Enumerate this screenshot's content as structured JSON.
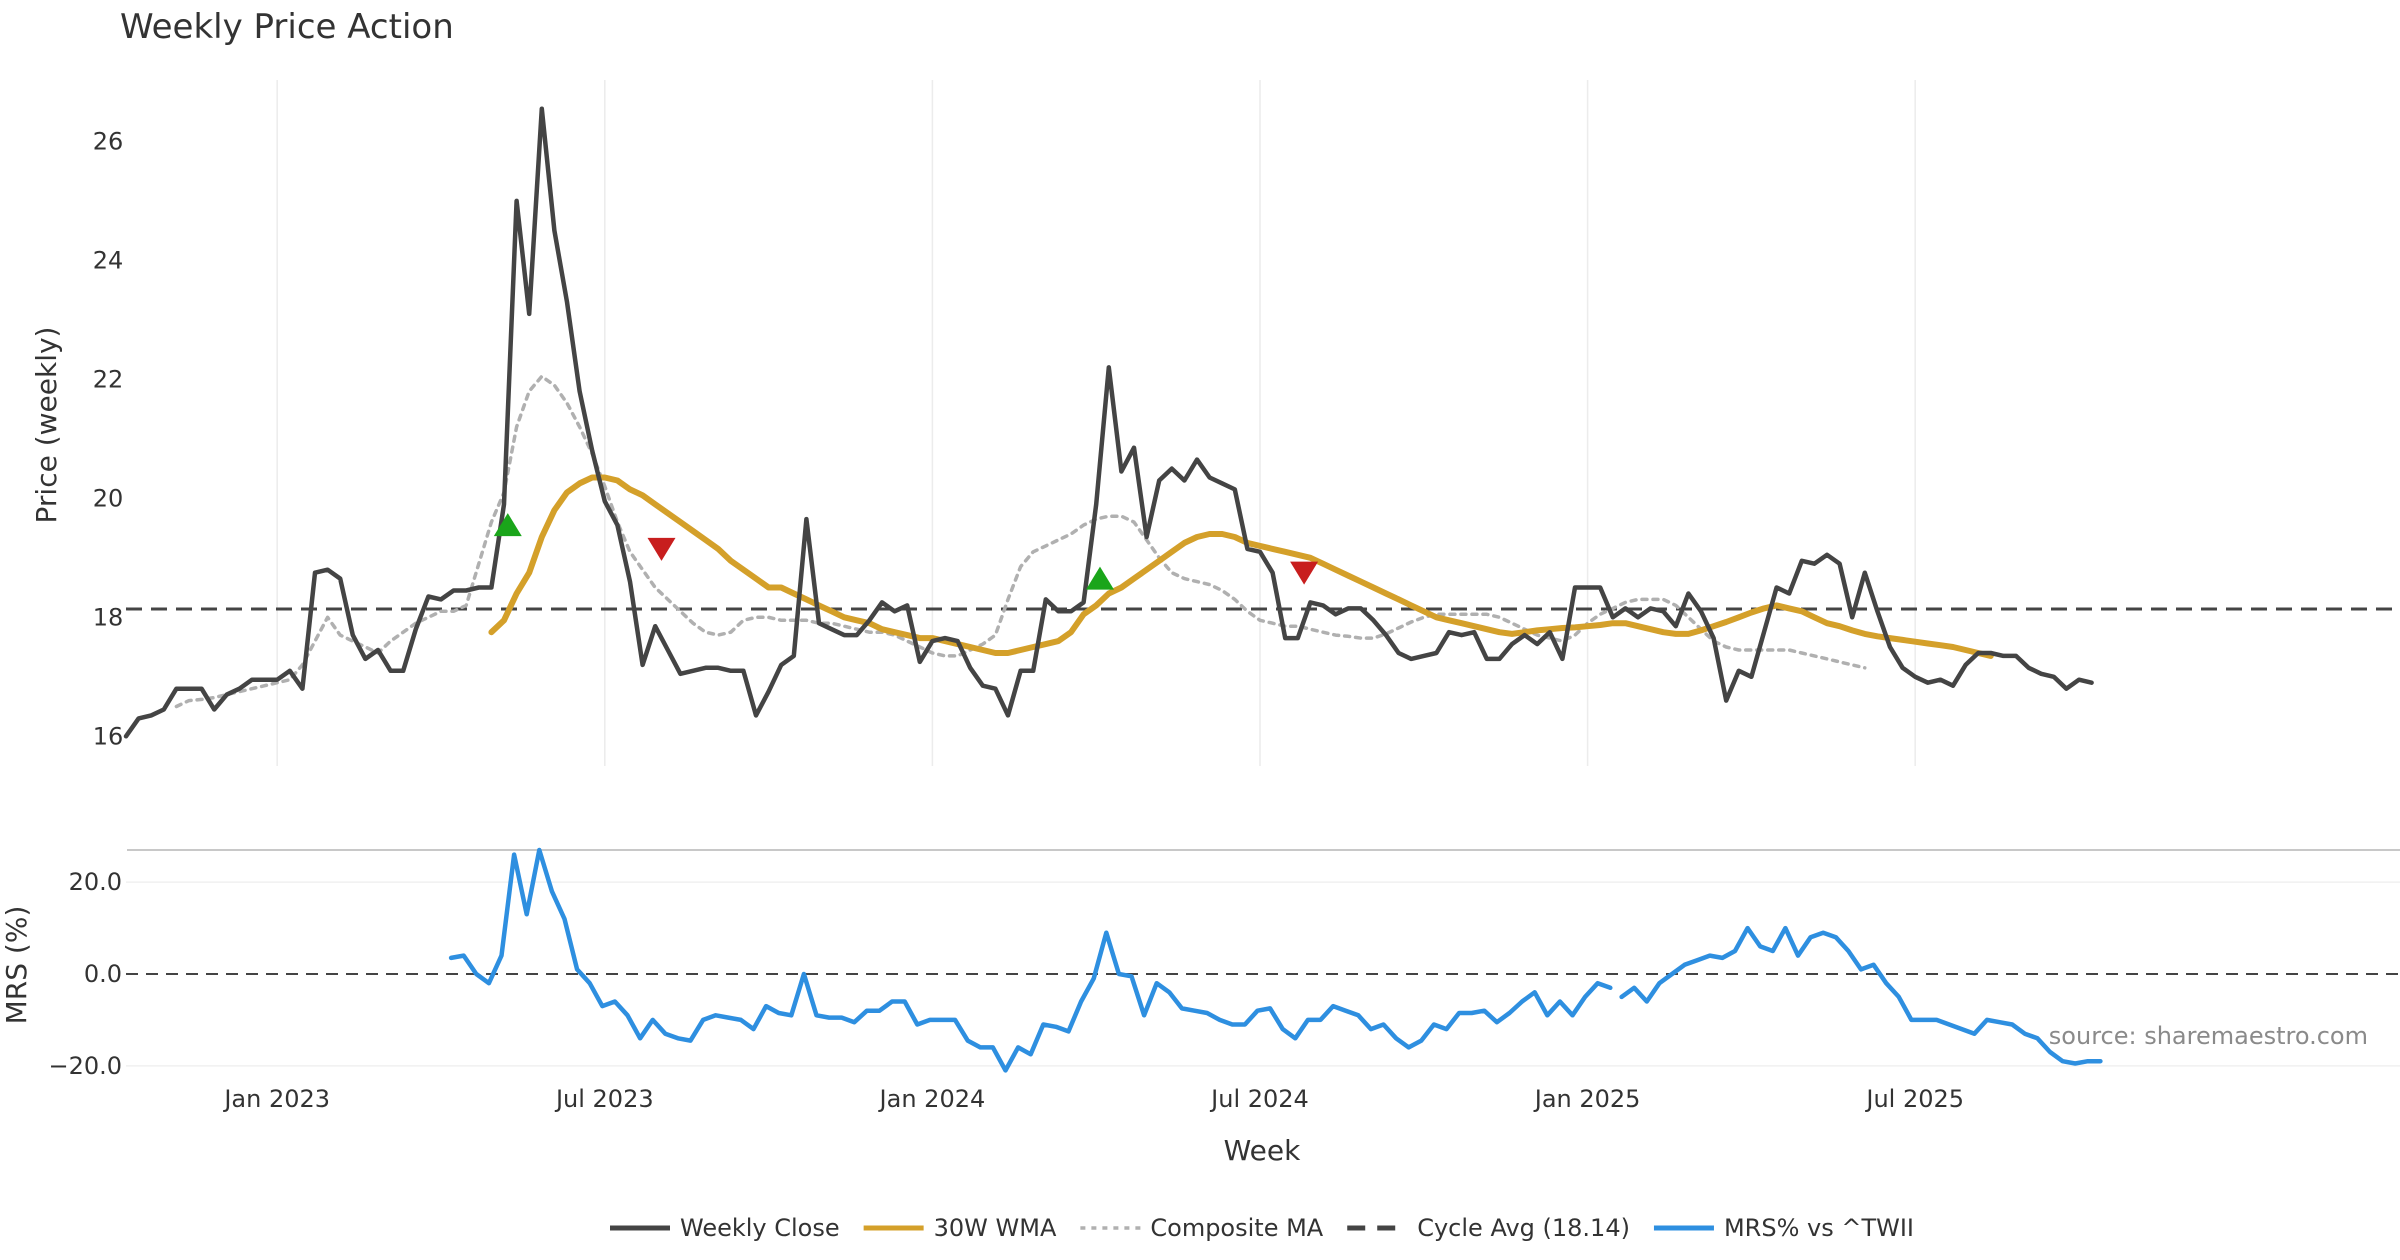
{
  "chart_data": {
    "type": "line",
    "title": "Weekly Price Action",
    "source": "source: sharemaestro.com",
    "xlabel": "Week",
    "x_ticks": [
      "Jan 2023",
      "Jul 2023",
      "Jan 2024",
      "Jul 2024",
      "Jan 2025",
      "Jul 2025"
    ],
    "x_tick_weeks": [
      12,
      38,
      64,
      90,
      116,
      142
    ],
    "price_panel": {
      "ylabel": "Price (weekly)",
      "ylim": [
        15.5,
        27.2
      ],
      "yticks": [
        16,
        18,
        20,
        22,
        24,
        26
      ],
      "series": [
        {
          "name": "Weekly Close",
          "color": "#444444",
          "start_week": 0,
          "values": [
            16.0,
            16.3,
            16.35,
            16.45,
            16.8,
            16.8,
            16.8,
            16.45,
            16.7,
            16.8,
            16.95,
            16.95,
            16.95,
            17.1,
            16.8,
            18.75,
            18.8,
            18.65,
            17.7,
            17.3,
            17.45,
            17.1,
            17.1,
            17.8,
            18.35,
            18.3,
            18.45,
            18.45,
            18.5,
            18.5,
            19.9,
            25.0,
            23.1,
            26.55,
            24.5,
            23.3,
            21.8,
            20.8,
            19.95,
            19.55,
            18.6,
            17.2,
            17.85,
            17.45,
            17.05,
            17.1,
            17.15,
            17.15,
            17.1,
            17.1,
            16.35,
            16.75,
            17.2,
            17.35,
            19.65,
            17.9,
            17.8,
            17.7,
            17.7,
            17.95,
            18.25,
            18.1,
            18.2,
            17.25,
            17.6,
            17.65,
            17.6,
            17.15,
            16.85,
            16.8,
            16.35,
            17.1,
            17.1,
            18.3,
            18.1,
            18.1,
            18.25,
            19.9,
            22.2,
            20.45,
            20.85,
            19.35,
            20.3,
            20.5,
            20.3,
            20.65,
            20.35,
            20.25,
            20.15,
            19.15,
            19.1,
            18.75,
            17.65,
            17.65,
            18.25,
            18.2,
            18.05,
            18.15,
            18.15,
            17.95,
            17.7,
            17.4,
            17.3,
            17.35,
            17.4,
            17.75,
            17.7,
            17.75,
            17.3,
            17.3,
            17.55,
            17.7,
            17.55,
            17.75,
            17.3,
            18.5,
            18.5,
            18.5,
            18.0,
            18.15,
            18.0,
            18.15,
            18.1,
            17.85,
            18.4,
            18.1,
            17.65,
            16.6,
            17.1,
            17.0,
            17.75,
            18.5,
            18.4,
            18.95,
            18.9,
            19.05,
            18.9,
            18.0,
            18.75,
            18.1,
            17.5,
            17.15,
            17.0,
            16.9,
            16.95,
            16.85,
            17.2,
            17.4,
            17.4,
            17.35,
            17.35,
            17.15,
            17.05,
            17.0,
            16.8,
            16.95,
            16.9
          ]
        },
        {
          "name": "30W WMA",
          "color": "#D4A02A",
          "start_week": 29,
          "values": [
            17.75,
            17.95,
            18.4,
            18.75,
            19.35,
            19.8,
            20.1,
            20.25,
            20.35,
            20.35,
            20.3,
            20.15,
            20.05,
            19.9,
            19.75,
            19.6,
            19.45,
            19.3,
            19.15,
            18.95,
            18.8,
            18.65,
            18.5,
            18.5,
            18.4,
            18.3,
            18.2,
            18.1,
            18.0,
            17.95,
            17.9,
            17.8,
            17.75,
            17.7,
            17.65,
            17.65,
            17.6,
            17.55,
            17.5,
            17.45,
            17.4,
            17.4,
            17.45,
            17.5,
            17.55,
            17.6,
            17.75,
            18.05,
            18.2,
            18.4,
            18.5,
            18.65,
            18.8,
            18.95,
            19.1,
            19.25,
            19.35,
            19.4,
            19.4,
            19.35,
            19.25,
            19.2,
            19.15,
            19.1,
            19.05,
            19.0,
            18.9,
            18.8,
            18.7,
            18.6,
            18.5,
            18.4,
            18.3,
            18.2,
            18.1,
            18.0,
            17.95,
            17.9,
            17.85,
            17.8,
            17.75,
            17.72,
            17.75,
            17.78,
            17.8,
            17.82,
            17.83,
            17.85,
            17.87,
            17.9,
            17.9,
            17.85,
            17.8,
            17.75,
            17.72,
            17.72,
            17.78,
            17.85,
            17.92,
            18.0,
            18.08,
            18.15,
            18.2,
            18.15,
            18.1,
            18.0,
            17.9,
            17.85,
            17.78,
            17.72,
            17.68,
            17.65,
            17.62,
            17.59,
            17.56,
            17.53,
            17.5,
            17.45,
            17.4,
            17.35
          ]
        },
        {
          "name": "Composite MA",
          "color": "#B0B0B0",
          "start_week": 4,
          "values": [
            16.5,
            16.6,
            16.62,
            16.65,
            16.7,
            16.75,
            16.8,
            16.85,
            16.9,
            16.95,
            17.2,
            17.6,
            18.0,
            17.7,
            17.6,
            17.5,
            17.4,
            17.6,
            17.75,
            17.9,
            18.0,
            18.1,
            18.1,
            18.2,
            18.9,
            19.6,
            20.1,
            21.2,
            21.8,
            22.05,
            21.9,
            21.6,
            21.2,
            20.75,
            20.2,
            19.6,
            19.1,
            18.8,
            18.5,
            18.3,
            18.1,
            17.9,
            17.75,
            17.7,
            17.75,
            17.95,
            18.0,
            18.0,
            17.95,
            17.95,
            17.95,
            17.9,
            17.9,
            17.85,
            17.8,
            17.75,
            17.75,
            17.7,
            17.6,
            17.5,
            17.4,
            17.35,
            17.35,
            17.45,
            17.55,
            17.7,
            18.3,
            18.85,
            19.1,
            19.2,
            19.3,
            19.4,
            19.55,
            19.65,
            19.7,
            19.7,
            19.6,
            19.3,
            19.0,
            18.75,
            18.65,
            18.6,
            18.55,
            18.45,
            18.3,
            18.1,
            17.95,
            17.9,
            17.85,
            17.85,
            17.8,
            17.75,
            17.7,
            17.68,
            17.65,
            17.65,
            17.72,
            17.82,
            17.92,
            18.0,
            18.05,
            18.05,
            18.05,
            18.05,
            18.05,
            18.0,
            17.9,
            17.8,
            17.7,
            17.65,
            17.6,
            17.7,
            17.9,
            18.05,
            18.15,
            18.25,
            18.3,
            18.3,
            18.3,
            18.2,
            18.0,
            17.8,
            17.6,
            17.5,
            17.45,
            17.45,
            17.45,
            17.45,
            17.45,
            17.4,
            17.35,
            17.3,
            17.25,
            17.2,
            17.15
          ]
        }
      ],
      "cycle_avg": {
        "name": "Cycle Avg (18.14)",
        "value": 18.14,
        "color": "#444444"
      },
      "signals": [
        {
          "type": "buy",
          "week": 30.3,
          "value": 19.55,
          "color": "#1AA51A"
        },
        {
          "type": "sell",
          "week": 42.5,
          "value": 19.15,
          "color": "#C81E1E"
        },
        {
          "type": "buy",
          "week": 77.3,
          "value": 18.65,
          "color": "#1AA51A"
        },
        {
          "type": "sell",
          "week": 93.5,
          "value": 18.75,
          "color": "#C81E1E"
        }
      ]
    },
    "mrs_panel": {
      "ylabel": "MRS (%)",
      "ylim": [
        -22,
        27
      ],
      "yticks": [
        20.0,
        0.0,
        -20.0
      ],
      "ytick_labels": [
        "20.0",
        "0.0",
        "−20.0"
      ],
      "zero_line": 0,
      "series": [
        {
          "name": "MRS% vs ^TWII",
          "color": "#2E8FE0",
          "segments": [
            {
              "start_week": 25.8,
              "values": [
                3.5,
                4,
                0,
                -2,
                4,
                26,
                13,
                27,
                18,
                12,
                1,
                -2,
                -7,
                -6,
                -9,
                -14,
                -10,
                -13,
                -14,
                -14.5,
                -10,
                -9,
                -9.5,
                -10,
                -12,
                -7,
                -8.5,
                -9,
                0,
                -9,
                -9.5,
                -9.5,
                -10.5,
                -8,
                -8,
                -6,
                -6,
                -11,
                -10,
                -10,
                -10,
                -14.5,
                -16,
                -16,
                -21,
                -16,
                -17.5,
                -11,
                -11.5,
                -12.5,
                -6,
                -1,
                9,
                0,
                -0.5,
                -9,
                -2,
                -4,
                -7.5,
                -8,
                -8.5,
                -10,
                -11,
                -11,
                -8,
                -7.5,
                -12,
                -14,
                -10,
                -10,
                -7,
                -8,
                -9,
                -12,
                -11,
                -14,
                -16,
                -14.5,
                -11,
                -12,
                -8.5,
                -8.5,
                -8,
                -10.5,
                -8.5,
                -6,
                -4,
                -9,
                -6,
                -9,
                -5,
                -2,
                -3
              ]
            },
            {
              "start_week": 118.7,
              "values": [
                -5,
                -3,
                -6,
                -2,
                0,
                2,
                3,
                4,
                3.5,
                5,
                10,
                6,
                5,
                10,
                4,
                8,
                9,
                8,
                5,
                1,
                2,
                -2,
                -5,
                -10,
                -10,
                -10,
                -11,
                -12,
                -13,
                -10,
                -10.5,
                -11,
                -13,
                -14,
                -17,
                -19,
                -19.5,
                -19,
                -19
              ]
            }
          ]
        }
      ],
      "source_position": "bottom-right"
    },
    "legend": {
      "placement": "bottom-center",
      "items": [
        {
          "label": "Weekly Close",
          "style": "solid",
          "color": "#444444"
        },
        {
          "label": "30W WMA",
          "style": "solid",
          "color": "#D4A02A"
        },
        {
          "label": "Composite MA",
          "style": "dotted",
          "color": "#B0B0B0"
        },
        {
          "label": "Cycle Avg (18.14)",
          "style": "dashed",
          "color": "#444444"
        },
        {
          "label": "MRS% vs ^TWII",
          "style": "solid",
          "color": "#2E8FE0"
        }
      ]
    }
  }
}
